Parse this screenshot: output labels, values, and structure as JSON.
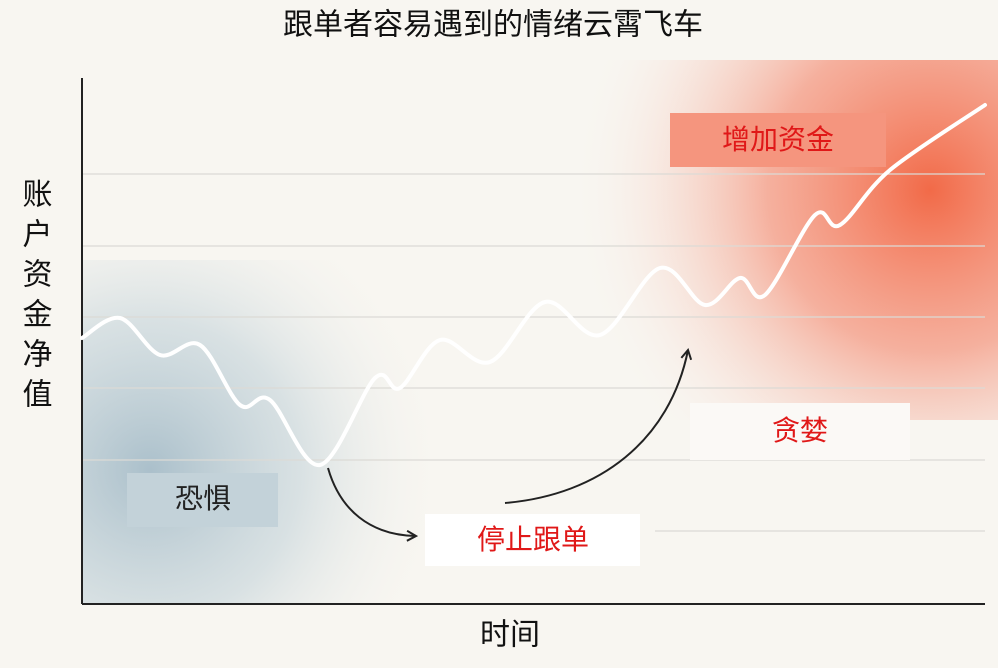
{
  "title": "跟单者容易遇到的情绪云霄飞车",
  "y_axis_label": "账户资金净值",
  "x_axis_label": "时间",
  "labels": {
    "fear": "恐惧",
    "stop": "停止跟单",
    "add": "增加资金",
    "greed": "贪婪"
  }
}
